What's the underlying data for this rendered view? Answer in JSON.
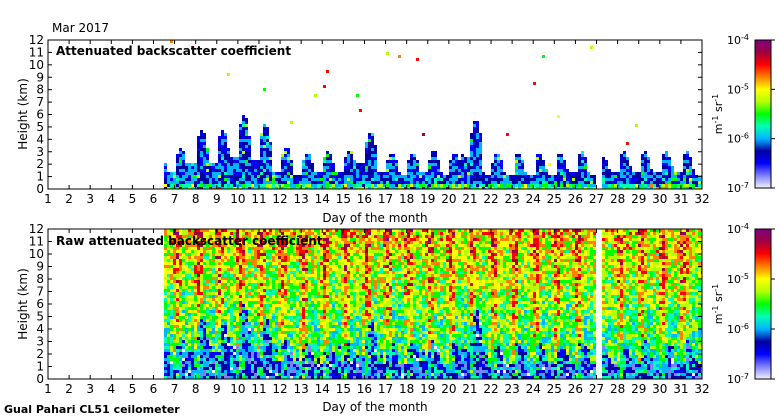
{
  "header": {
    "month": "Mar 2017"
  },
  "footer": {
    "instrument": "Gual Pahari CL51 ceilometer"
  },
  "colorbar": {
    "ticks": [
      "10-7",
      "10-6",
      "10-5",
      "10-4"
    ],
    "exponents": [
      -7,
      -6,
      -5,
      -4
    ],
    "unit_label": "m-1 sr-1",
    "colors": [
      "#f2f2ff",
      "#8080ff",
      "#0000ff",
      "#0000a0",
      "#00b4ff",
      "#00ffb4",
      "#00ff00",
      "#b4ff00",
      "#ffff00",
      "#ff8000",
      "#ff0000",
      "#a00040",
      "#800080"
    ]
  },
  "chart_data": [
    {
      "type": "heatmap",
      "title": "Attenuated backscatter coefficient",
      "xlabel": "Day of the month",
      "ylabel": "Height (km)",
      "xlim": [
        1,
        32
      ],
      "ylim": [
        0,
        12
      ],
      "x_ticks": [
        1,
        2,
        3,
        4,
        5,
        6,
        7,
        8,
        9,
        10,
        11,
        12,
        13,
        14,
        15,
        16,
        17,
        18,
        19,
        20,
        21,
        22,
        23,
        24,
        25,
        26,
        27,
        28,
        29,
        30,
        31,
        32
      ],
      "y_ticks": [
        0,
        1,
        2,
        3,
        4,
        5,
        6,
        7,
        8,
        9,
        10,
        11,
        12
      ],
      "data_start_day": 6.5,
      "data_gaps_days": [
        [
          9.5,
          9.6
        ],
        [
          26.9,
          27.2
        ]
      ],
      "colorscale": "log10, 1e-7 to 1e-4 m-1 sr-1",
      "daily_signal_top_km": [
        {
          "day": 7,
          "top_km": 3.4
        },
        {
          "day": 8,
          "top_km": 5.0
        },
        {
          "day": 9,
          "top_km": 4.9
        },
        {
          "day": 10,
          "top_km": 6.1
        },
        {
          "day": 11,
          "top_km": 5.3
        },
        {
          "day": 12,
          "top_km": 3.5
        },
        {
          "day": 13,
          "top_km": 3.0
        },
        {
          "day": 14,
          "top_km": 3.1
        },
        {
          "day": 15,
          "top_km": 3.2
        },
        {
          "day": 16,
          "top_km": 4.8
        },
        {
          "day": 17,
          "top_km": 3.1
        },
        {
          "day": 18,
          "top_km": 3.0
        },
        {
          "day": 19,
          "top_km": 3.2
        },
        {
          "day": 20,
          "top_km": 3.0
        },
        {
          "day": 21,
          "top_km": 5.8
        },
        {
          "day": 22,
          "top_km": 3.0
        },
        {
          "day": 23,
          "top_km": 3.0
        },
        {
          "day": 24,
          "top_km": 3.0
        },
        {
          "day": 25,
          "top_km": 3.0
        },
        {
          "day": 26,
          "top_km": 3.1
        },
        {
          "day": 27,
          "top_km": 2.8
        },
        {
          "day": 28,
          "top_km": 3.1
        },
        {
          "day": 29,
          "top_km": 3.2
        },
        {
          "day": 30,
          "top_km": 3.1
        },
        {
          "day": 31,
          "top_km": 3.2
        }
      ]
    },
    {
      "type": "heatmap",
      "title": "Raw attenuated backscatter coefficient",
      "xlabel": "Day of the month",
      "ylabel": "Height (km)",
      "xlim": [
        1,
        32
      ],
      "ylim": [
        0,
        12
      ],
      "x_ticks": [
        1,
        2,
        3,
        4,
        5,
        6,
        7,
        8,
        9,
        10,
        11,
        12,
        13,
        14,
        15,
        16,
        17,
        18,
        19,
        20,
        21,
        22,
        23,
        24,
        25,
        26,
        27,
        28,
        29,
        30,
        31,
        32
      ],
      "y_ticks": [
        0,
        1,
        2,
        3,
        4,
        5,
        6,
        7,
        8,
        9,
        10,
        11,
        12
      ],
      "data_start_day": 6.5,
      "data_gaps_days": [
        [
          9.5,
          9.6
        ],
        [
          26.9,
          27.2
        ]
      ],
      "colorscale": "log10, 1e-7 to 1e-4 m-1 sr-1"
    }
  ]
}
